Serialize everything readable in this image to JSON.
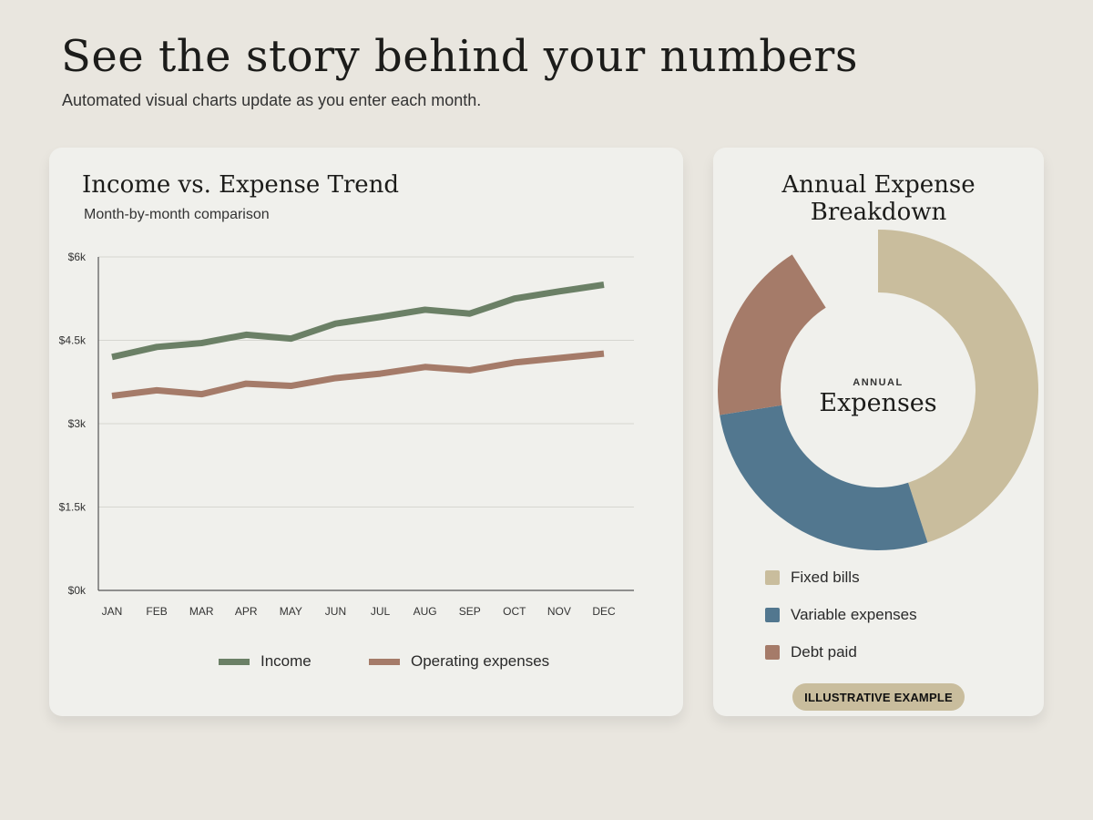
{
  "page": {
    "title": "See the story behind your numbers",
    "subtitle": "Automated visual charts update as you enter each month."
  },
  "colors": {
    "income": "#6b8066",
    "expenses": "#a57b69",
    "fixed": "#c9bd9d",
    "variable": "#52778f",
    "debt": "#a57b69"
  },
  "chart_data": [
    {
      "type": "line",
      "title": "Income vs. Expense Trend",
      "subtitle": "Month-by-month comparison",
      "categories": [
        "JAN",
        "FEB",
        "MAR",
        "APR",
        "MAY",
        "JUN",
        "JUL",
        "AUG",
        "SEP",
        "OCT",
        "NOV",
        "DEC"
      ],
      "y_ticks": [
        "$0k",
        "$1.5k",
        "$3k",
        "$4.5k",
        "$6k"
      ],
      "ylim": [
        0,
        6000
      ],
      "grid": true,
      "legend_position": "bottom",
      "series": [
        {
          "name": "Income",
          "color": "#6b8066",
          "values": [
            4200,
            4380,
            4450,
            4600,
            4530,
            4800,
            4920,
            5050,
            4980,
            5250,
            5380,
            5500
          ]
        },
        {
          "name": "Operating expenses",
          "color": "#a57b69",
          "values": [
            3500,
            3600,
            3530,
            3720,
            3680,
            3820,
            3900,
            4020,
            3960,
            4100,
            4180,
            4260
          ]
        }
      ]
    },
    {
      "type": "pie",
      "title_line1": "Annual Expense",
      "title_line2": "Breakdown",
      "center_small": "ANNUAL",
      "center_large": "Expenses",
      "legend_position": "bottom",
      "slices": [
        {
          "name": "Fixed bills",
          "value": 45,
          "color": "#c9bd9d"
        },
        {
          "name": "Variable expenses",
          "value": 27.5,
          "color": "#52778f"
        },
        {
          "name": "Debt paid",
          "value": 18.5,
          "color": "#a57b69"
        }
      ],
      "gap_value": 9,
      "badge": "ILLUSTRATIVE EXAMPLE"
    }
  ]
}
